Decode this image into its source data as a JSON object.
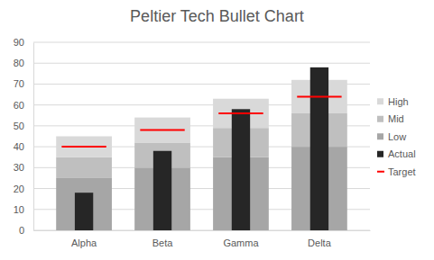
{
  "chart_data": {
    "type": "bullet",
    "title": "Peltier Tech Bullet Chart",
    "categories": [
      "Alpha",
      "Beta",
      "Gamma",
      "Delta"
    ],
    "series": [
      {
        "name": "Low",
        "type": "range",
        "color": "#a6a6a6",
        "values": [
          25,
          30,
          35,
          40
        ]
      },
      {
        "name": "Mid",
        "type": "range",
        "color": "#bfbfbf",
        "values": [
          10,
          12,
          14,
          16
        ]
      },
      {
        "name": "High",
        "type": "range",
        "color": "#d9d9d9",
        "values": [
          10,
          12,
          14,
          16
        ]
      },
      {
        "name": "Actual",
        "type": "bar",
        "color": "#262626",
        "values": [
          18,
          38,
          58,
          78
        ]
      },
      {
        "name": "Target",
        "type": "marker",
        "marker": "dash",
        "color": "#ff0000",
        "values": [
          40,
          48,
          56,
          64
        ]
      }
    ],
    "stacked": true,
    "ylim": [
      0,
      90
    ],
    "yticks": [
      0,
      10,
      20,
      30,
      40,
      50,
      60,
      70,
      80,
      90
    ],
    "grid": true,
    "legend": "right"
  }
}
